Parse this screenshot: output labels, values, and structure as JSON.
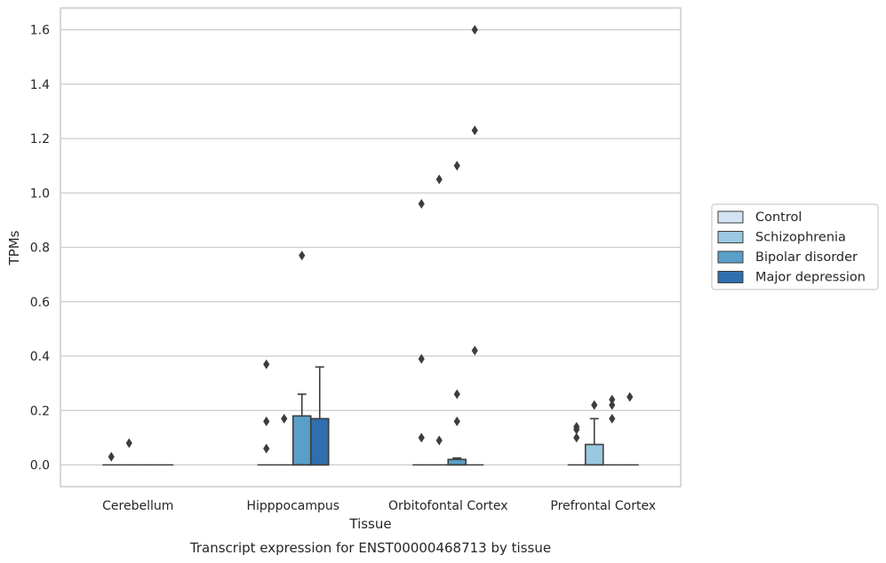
{
  "chart_data": {
    "type": "box",
    "title": "Transcript expression for ENST00000468713 by tissue",
    "xlabel": "Tissue",
    "ylabel": "TPMs",
    "ylim": [
      -0.08,
      1.68
    ],
    "yticks": [
      0.0,
      0.2,
      0.4,
      0.6,
      0.8,
      1.0,
      1.2,
      1.4,
      1.6
    ],
    "ytick_labels": [
      "0.0",
      "0.2",
      "0.4",
      "0.6",
      "0.8",
      "1.0",
      "1.2",
      "1.4",
      "1.6"
    ],
    "grid": true,
    "legend_position": "right",
    "categories": [
      "Cerebellum",
      "Hipppocampus",
      "Orbitofontal Cortex",
      "Prefrontal Cortex"
    ],
    "series": [
      {
        "name": "Control",
        "color": "#d3e3f3",
        "boxes": [
          {
            "q1": 0,
            "median": 0,
            "q3": 0,
            "whisker_low": 0,
            "whisker_high": 0,
            "outliers": [
              0.03
            ]
          },
          {
            "q1": 0,
            "median": 0,
            "q3": 0,
            "whisker_low": 0,
            "whisker_high": 0,
            "outliers": [
              0.37,
              0.16,
              0.06
            ]
          },
          {
            "q1": 0,
            "median": 0,
            "q3": 0,
            "whisker_low": 0,
            "whisker_high": 0,
            "outliers": [
              0.96,
              0.39,
              0.1
            ]
          },
          {
            "q1": 0,
            "median": 0,
            "q3": 0,
            "whisker_low": 0,
            "whisker_high": 0,
            "outliers": [
              0.14,
              0.13,
              0.1
            ]
          }
        ]
      },
      {
        "name": "Schizophrenia",
        "color": "#9ac8e0",
        "boxes": [
          {
            "q1": 0,
            "median": 0,
            "q3": 0,
            "whisker_low": 0,
            "whisker_high": 0,
            "outliers": [
              0.08
            ]
          },
          {
            "q1": 0,
            "median": 0,
            "q3": 0,
            "whisker_low": 0,
            "whisker_high": 0,
            "outliers": [
              0.17
            ]
          },
          {
            "q1": 0,
            "median": 0,
            "q3": 0,
            "whisker_low": 0,
            "whisker_high": 0,
            "outliers": [
              1.05,
              0.09
            ]
          },
          {
            "q1": 0,
            "median": 0,
            "q3": 0.075,
            "whisker_low": 0,
            "whisker_high": 0.17,
            "outliers": [
              0.22
            ]
          }
        ]
      },
      {
        "name": "Bipolar disorder",
        "color": "#5a9fca",
        "boxes": [
          {
            "q1": 0,
            "median": 0,
            "q3": 0,
            "whisker_low": 0,
            "whisker_high": 0,
            "outliers": []
          },
          {
            "q1": 0,
            "median": 0,
            "q3": 0.18,
            "whisker_low": 0,
            "whisker_high": 0.26,
            "outliers": [
              0.77
            ]
          },
          {
            "q1": 0,
            "median": 0,
            "q3": 0.02,
            "whisker_low": 0,
            "whisker_high": 0.025,
            "outliers": [
              1.1,
              0.26,
              0.16
            ]
          },
          {
            "q1": 0,
            "median": 0,
            "q3": 0,
            "whisker_low": 0,
            "whisker_high": 0,
            "outliers": [
              0.24,
              0.22,
              0.17
            ]
          }
        ]
      },
      {
        "name": "Major depression",
        "color": "#2f6fae",
        "boxes": [
          {
            "q1": 0,
            "median": 0,
            "q3": 0,
            "whisker_low": 0,
            "whisker_high": 0,
            "outliers": []
          },
          {
            "q1": 0,
            "median": 0,
            "q3": 0.17,
            "whisker_low": 0,
            "whisker_high": 0.36,
            "outliers": []
          },
          {
            "q1": 0,
            "median": 0,
            "q3": 0,
            "whisker_low": 0,
            "whisker_high": 0,
            "outliers": [
              1.6,
              1.23,
              0.42
            ]
          },
          {
            "q1": 0,
            "median": 0,
            "q3": 0,
            "whisker_low": 0,
            "whisker_high": 0,
            "outliers": [
              0.25
            ]
          }
        ]
      }
    ]
  }
}
